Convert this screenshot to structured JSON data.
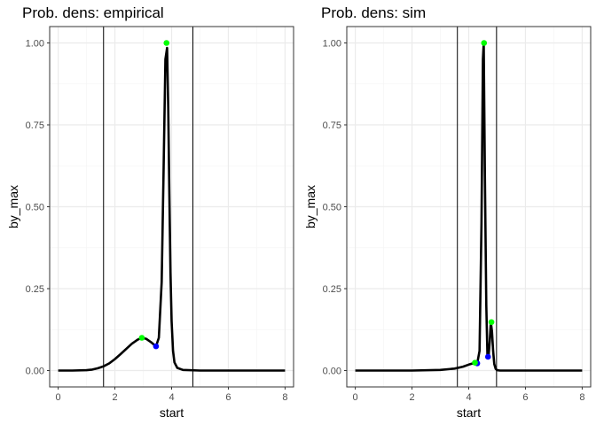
{
  "chart_data": [
    {
      "type": "line",
      "title": "Prob. dens: empirical",
      "xlabel": "start",
      "ylabel": "by_max",
      "xlim": [
        -0.3,
        8.3
      ],
      "ylim": [
        -0.05,
        1.05
      ],
      "x_ticks": [
        "0",
        "2",
        "4",
        "6",
        "8"
      ],
      "y_ticks": [
        "0.00",
        "0.25",
        "0.50",
        "0.75",
        "1.00"
      ],
      "grid": true,
      "series": [
        {
          "x": [
            0,
            0.5,
            1.0,
            1.2,
            1.4,
            1.6,
            1.8,
            2.0,
            2.2,
            2.4,
            2.6,
            2.8,
            2.95,
            3.1,
            3.3,
            3.45,
            3.55,
            3.65,
            3.72,
            3.78,
            3.84,
            3.88,
            3.92,
            3.96,
            4.0,
            4.05,
            4.1,
            4.2,
            4.4,
            5.0,
            6.0,
            8.0
          ],
          "y": [
            0,
            0,
            0.001,
            0.003,
            0.007,
            0.013,
            0.022,
            0.035,
            0.05,
            0.066,
            0.082,
            0.094,
            0.1,
            0.097,
            0.085,
            0.074,
            0.1,
            0.27,
            0.62,
            0.95,
            0.985,
            0.8,
            0.55,
            0.3,
            0.15,
            0.06,
            0.025,
            0.008,
            0.002,
            0,
            0,
            0
          ]
        }
      ],
      "vlines": [
        1.6,
        4.75
      ],
      "maxima": [
        {
          "x": 2.95,
          "y": 0.1
        },
        {
          "x": 3.82,
          "y": 1.0
        }
      ],
      "minima": [
        {
          "x": 3.45,
          "y": 0.074
        }
      ],
      "colors": {
        "maxima": "#00ff00",
        "minima": "#0000ff",
        "line": "#000000"
      }
    },
    {
      "type": "line",
      "title": "Prob. dens: sim",
      "xlabel": "start",
      "ylabel": "by_max",
      "xlim": [
        -0.3,
        8.3
      ],
      "ylim": [
        -0.05,
        1.05
      ],
      "x_ticks": [
        "0",
        "2",
        "4",
        "6",
        "8"
      ],
      "y_ticks": [
        "0.00",
        "0.25",
        "0.50",
        "0.75",
        "1.00"
      ],
      "grid": true,
      "series": [
        {
          "x": [
            0,
            2.0,
            3.0,
            3.5,
            3.8,
            4.0,
            4.15,
            4.22,
            4.3,
            4.38,
            4.45,
            4.5,
            4.53,
            4.57,
            4.62,
            4.66,
            4.7,
            4.74,
            4.78,
            4.82,
            4.86,
            4.9,
            4.95,
            5.0,
            5.1,
            6.0,
            8.0
          ],
          "y": [
            0,
            0,
            0.002,
            0.006,
            0.012,
            0.018,
            0.022,
            0.024,
            0.022,
            0.06,
            0.45,
            0.95,
            1.0,
            0.6,
            0.2,
            0.045,
            0.045,
            0.09,
            0.148,
            0.12,
            0.06,
            0.02,
            0.005,
            0.001,
            0,
            0,
            0
          ]
        }
      ],
      "vlines": [
        3.6,
        4.98
      ],
      "maxima": [
        {
          "x": 4.22,
          "y": 0.024
        },
        {
          "x": 4.54,
          "y": 1.0
        },
        {
          "x": 4.8,
          "y": 0.148
        }
      ],
      "minima": [
        {
          "x": 4.3,
          "y": 0.022
        },
        {
          "x": 4.68,
          "y": 0.042
        }
      ],
      "colors": {
        "maxima": "#00ff00",
        "minima": "#0000ff",
        "line": "#000000"
      }
    }
  ],
  "style": {
    "grid_major": "#ebebeb",
    "grid_minor": "#f5f5f5",
    "panel_border": "#333333",
    "tick_text": "#4d4d4d"
  }
}
